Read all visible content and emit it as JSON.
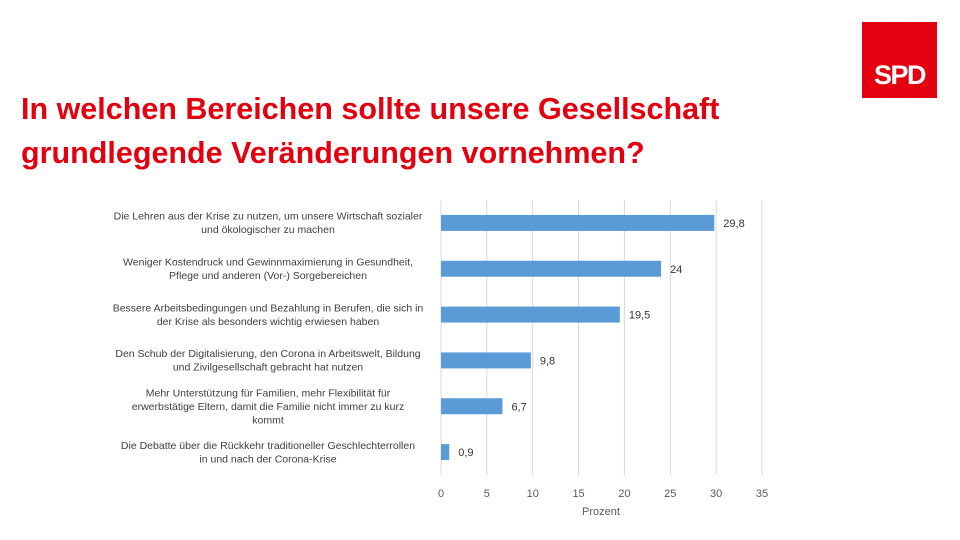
{
  "logo": {
    "text": "SPD"
  },
  "title": {
    "line1": "In welchen Bereichen sollte unsere Gesellschaft",
    "line2": "grundlegende Veränderungen vornehmen?"
  },
  "colors": {
    "brand": "#e3000f",
    "bar": "#5b9bd5",
    "grid": "#d9d9d9"
  },
  "chart_data": {
    "type": "bar",
    "orientation": "horizontal",
    "categories": [
      [
        "Die Lehren aus der Krise zu nutzen, um unsere Wirtschaft sozialer",
        "und ökologischer zu machen"
      ],
      [
        "Weniger Kostendruck und Gewinnmaximierung in Gesundheit,",
        "Pflege und anderen (Vor-) Sorgebereichen"
      ],
      [
        "Bessere Arbeitsbedingungen und Bezahlung in Berufen, die sich in",
        "der Krise als besonders wichtig erwiesen haben"
      ],
      [
        "Den Schub der Digitalisierung, den Corona in Arbeitswelt, Bildung",
        "und Zivilgesellschaft gebracht hat nutzen"
      ],
      [
        "Mehr Unterstützung für Familien, mehr Flexibilität für",
        "erwerbstätige Eltern, damit die Familie nicht immer zu kurz",
        "kommt"
      ],
      [
        "Die Debatte über die Rückkehr traditioneller Geschlechterrollen",
        "in und nach der Corona-Krise"
      ]
    ],
    "values": [
      29.8,
      24,
      19.5,
      9.8,
      6.7,
      0.9
    ],
    "value_labels": [
      "29,8",
      "24",
      "19,5",
      "9,8",
      "6,7",
      "0,9"
    ],
    "xlabel": "Prozent",
    "xlim": [
      0,
      35
    ],
    "xticks": [
      0,
      5,
      10,
      15,
      20,
      25,
      30,
      35
    ],
    "grid": true,
    "legend": "none"
  }
}
